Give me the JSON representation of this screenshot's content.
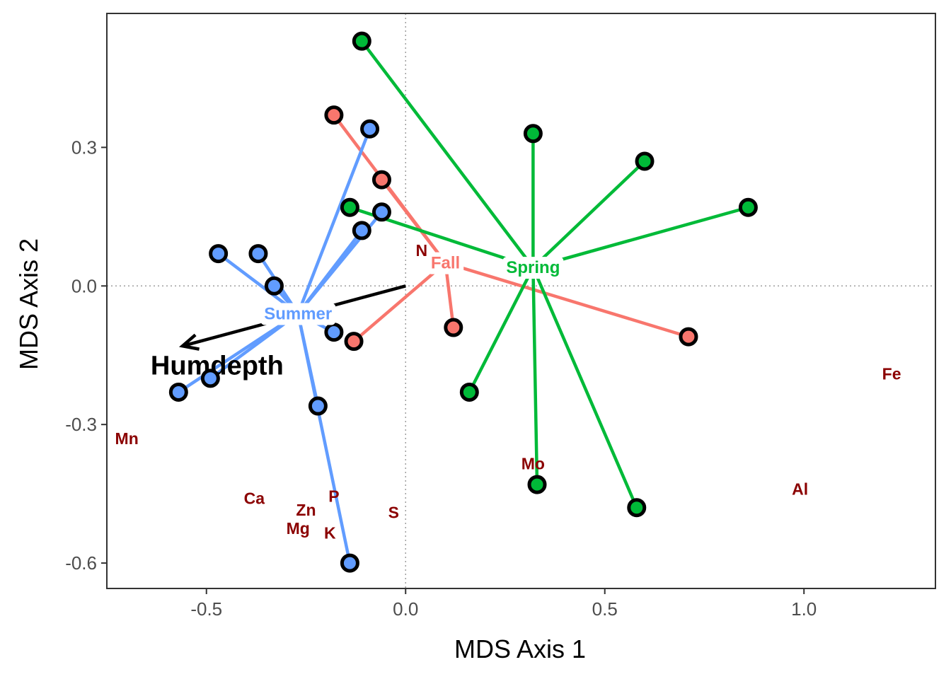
{
  "chart_data": {
    "type": "scatter",
    "xlabel": "MDS Axis 1",
    "ylabel": "MDS Axis 2",
    "xlim": [
      -0.75,
      1.33
    ],
    "ylim": [
      -0.655,
      0.59
    ],
    "x_ticks": [
      -0.5,
      0.0,
      0.5,
      1.0
    ],
    "x_tick_labels": [
      "-0.5",
      "0.0",
      "0.5",
      "1.0"
    ],
    "y_ticks": [
      -0.6,
      -0.3,
      0.0,
      0.3
    ],
    "y_tick_labels": [
      "-0.6",
      "-0.3",
      "0.0",
      "0.3"
    ],
    "reference_lines": {
      "x": 0,
      "y": 0,
      "style": "dotted"
    },
    "grid": false,
    "legend": "none",
    "groups": [
      {
        "name": "Fall",
        "color": "#f8766d",
        "centroid": [
          0.1,
          0.05
        ],
        "points": [
          [
            -0.18,
            0.37
          ],
          [
            -0.06,
            0.23
          ],
          [
            0.12,
            -0.09
          ],
          [
            -0.13,
            -0.12
          ],
          [
            0.71,
            -0.11
          ]
        ]
      },
      {
        "name": "Spring",
        "color": "#00ba38",
        "centroid": [
          0.32,
          0.04
        ],
        "points": [
          [
            -0.11,
            0.53
          ],
          [
            0.32,
            0.33
          ],
          [
            0.6,
            0.27
          ],
          [
            0.86,
            0.17
          ],
          [
            -0.14,
            0.17
          ],
          [
            0.16,
            -0.23
          ],
          [
            0.33,
            -0.43
          ],
          [
            0.58,
            -0.48
          ]
        ]
      },
      {
        "name": "Summer",
        "color": "#619cff",
        "centroid": [
          -0.27,
          -0.06
        ],
        "points": [
          [
            -0.09,
            0.34
          ],
          [
            -0.06,
            0.16
          ],
          [
            -0.11,
            0.12
          ],
          [
            -0.47,
            0.07
          ],
          [
            -0.37,
            0.07
          ],
          [
            -0.33,
            0.0
          ],
          [
            -0.18,
            -0.1
          ],
          [
            -0.57,
            -0.23
          ],
          [
            -0.49,
            -0.2
          ],
          [
            -0.22,
            -0.26
          ],
          [
            -0.14,
            -0.6
          ]
        ]
      }
    ],
    "vector": {
      "label": "Humdepth",
      "from": [
        0.0,
        0.0
      ],
      "to": [
        -0.56,
        -0.13
      ],
      "label_position": [
        -0.64,
        -0.17
      ]
    },
    "element_labels": [
      {
        "label": "N",
        "x": 0.04,
        "y": 0.077
      },
      {
        "label": "Fe",
        "x": 1.22,
        "y": -0.19
      },
      {
        "label": "Mn",
        "x": -0.7,
        "y": -0.33
      },
      {
        "label": "Mo",
        "x": 0.32,
        "y": -0.385
      },
      {
        "label": "Al",
        "x": 0.99,
        "y": -0.44
      },
      {
        "label": "Ca",
        "x": -0.38,
        "y": -0.46
      },
      {
        "label": "P",
        "x": -0.18,
        "y": -0.455
      },
      {
        "label": "Zn",
        "x": -0.25,
        "y": -0.485
      },
      {
        "label": "S",
        "x": -0.03,
        "y": -0.49
      },
      {
        "label": "Mg",
        "x": -0.27,
        "y": -0.525
      },
      {
        "label": "K",
        "x": -0.19,
        "y": -0.535
      }
    ]
  }
}
